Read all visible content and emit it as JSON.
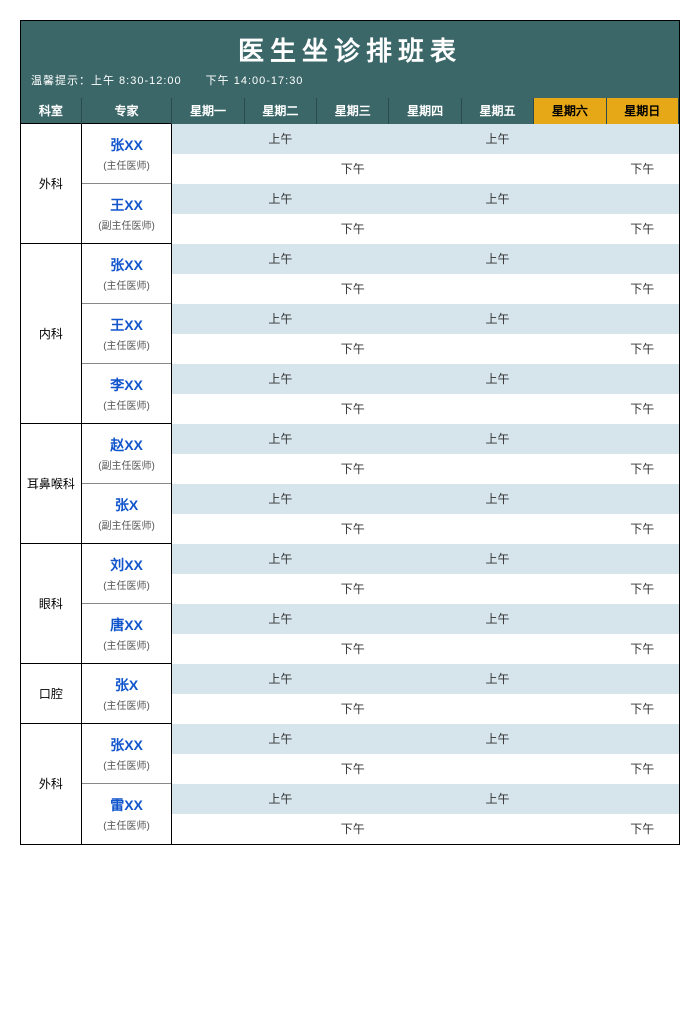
{
  "title": "医生坐诊排班表",
  "hint": "温馨提示：上午 8:30-12:00　　下午 14:00-17:30",
  "am_label": "上午",
  "pm_label": "下午",
  "colors": {
    "header_bg": "#3b6768",
    "header_fg": "#ffffff",
    "weekend_bg": "#e6a817",
    "expert_name": "#1155cc",
    "row_am_bg": "#d6e4ec",
    "row_pm_bg": "#ffffff",
    "border": "#000000"
  },
  "columns": {
    "dept": "科室",
    "expert": "专家",
    "days": [
      "星期一",
      "星期二",
      "星期三",
      "星期四",
      "星期五",
      "星期六",
      "星期日"
    ],
    "weekend_index": [
      5,
      6
    ]
  },
  "departments": [
    {
      "name": "外科",
      "experts": [
        {
          "name": "张XX",
          "title": "(主任医师)",
          "am": [
            0,
            1,
            0,
            0,
            1,
            0,
            0
          ],
          "pm": [
            0,
            0,
            1,
            0,
            0,
            0,
            1
          ]
        },
        {
          "name": "王XX",
          "title": "(副主任医师)",
          "am": [
            0,
            1,
            0,
            0,
            1,
            0,
            0
          ],
          "pm": [
            0,
            0,
            1,
            0,
            0,
            0,
            1
          ]
        }
      ]
    },
    {
      "name": "内科",
      "experts": [
        {
          "name": "张XX",
          "title": "(主任医师)",
          "am": [
            0,
            1,
            0,
            0,
            1,
            0,
            0
          ],
          "pm": [
            0,
            0,
            1,
            0,
            0,
            0,
            1
          ]
        },
        {
          "name": "王XX",
          "title": "(主任医师)",
          "am": [
            0,
            1,
            0,
            0,
            1,
            0,
            0
          ],
          "pm": [
            0,
            0,
            1,
            0,
            0,
            0,
            1
          ]
        },
        {
          "name": "李XX",
          "title": "(主任医师)",
          "am": [
            0,
            1,
            0,
            0,
            1,
            0,
            0
          ],
          "pm": [
            0,
            0,
            1,
            0,
            0,
            0,
            1
          ]
        }
      ]
    },
    {
      "name": "耳鼻喉科",
      "experts": [
        {
          "name": "赵XX",
          "title": "(副主任医师)",
          "am": [
            0,
            1,
            0,
            0,
            1,
            0,
            0
          ],
          "pm": [
            0,
            0,
            1,
            0,
            0,
            0,
            1
          ]
        },
        {
          "name": "张X",
          "title": "(副主任医师)",
          "am": [
            0,
            1,
            0,
            0,
            1,
            0,
            0
          ],
          "pm": [
            0,
            0,
            1,
            0,
            0,
            0,
            1
          ]
        }
      ]
    },
    {
      "name": "眼科",
      "experts": [
        {
          "name": "刘XX",
          "title": "(主任医师)",
          "am": [
            0,
            1,
            0,
            0,
            1,
            0,
            0
          ],
          "pm": [
            0,
            0,
            1,
            0,
            0,
            0,
            1
          ]
        },
        {
          "name": "唐XX",
          "title": "(主任医师)",
          "am": [
            0,
            1,
            0,
            0,
            1,
            0,
            0
          ],
          "pm": [
            0,
            0,
            1,
            0,
            0,
            0,
            1
          ]
        }
      ]
    },
    {
      "name": "口腔",
      "experts": [
        {
          "name": "张X",
          "title": "(主任医师)",
          "am": [
            0,
            1,
            0,
            0,
            1,
            0,
            0
          ],
          "pm": [
            0,
            0,
            1,
            0,
            0,
            0,
            1
          ]
        }
      ]
    },
    {
      "name": "外科",
      "experts": [
        {
          "name": "张XX",
          "title": "(主任医师)",
          "am": [
            0,
            1,
            0,
            0,
            1,
            0,
            0
          ],
          "pm": [
            0,
            0,
            1,
            0,
            0,
            0,
            1
          ]
        },
        {
          "name": "雷XX",
          "title": "(主任医师)",
          "am": [
            0,
            1,
            0,
            0,
            1,
            0,
            0
          ],
          "pm": [
            0,
            0,
            1,
            0,
            0,
            0,
            1
          ]
        }
      ]
    }
  ]
}
